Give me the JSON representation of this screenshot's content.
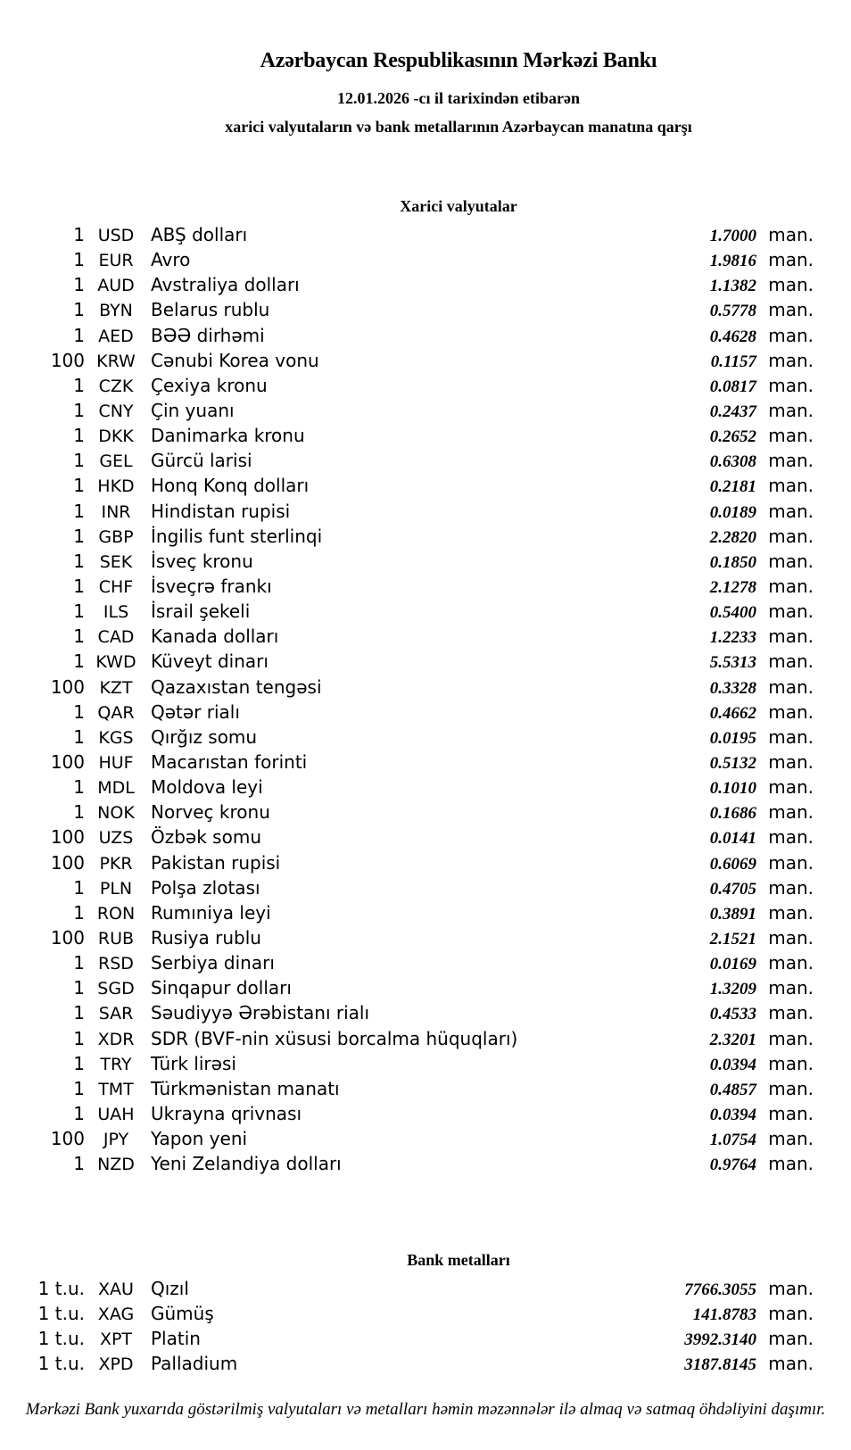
{
  "colors": {
    "background": "#ffffff",
    "text": "#000000"
  },
  "header": {
    "title": "Azərbaycan Respublikasının Mərkəzi Bankı",
    "date_line": "12.01.2026 -cı il tarixindən etibarən",
    "subtitle": "xarici valyutaların və bank metallarının Azərbaycan manatına qarşı"
  },
  "currencies": {
    "heading": "Xarici valyutalar",
    "unit": "man.",
    "rows": [
      {
        "qty": "1",
        "code": "USD",
        "name": "ABŞ dolları",
        "rate": "1.7000"
      },
      {
        "qty": "1",
        "code": "EUR",
        "name": "Avro",
        "rate": "1.9816"
      },
      {
        "qty": "1",
        "code": "AUD",
        "name": "Avstraliya dolları",
        "rate": "1.1382"
      },
      {
        "qty": "1",
        "code": "BYN",
        "name": "Belarus rublu",
        "rate": "0.5778"
      },
      {
        "qty": "1",
        "code": "AED",
        "name": "BƏƏ dirhəmi",
        "rate": "0.4628"
      },
      {
        "qty": "100",
        "code": "KRW",
        "name": "Cənubi Korea vonu",
        "rate": "0.1157"
      },
      {
        "qty": "1",
        "code": "CZK",
        "name": "Çexiya kronu",
        "rate": "0.0817"
      },
      {
        "qty": "1",
        "code": "CNY",
        "name": "Çin yuanı",
        "rate": "0.2437"
      },
      {
        "qty": "1",
        "code": "DKK",
        "name": "Danimarka kronu",
        "rate": "0.2652"
      },
      {
        "qty": "1",
        "code": "GEL",
        "name": "Gürcü larisi",
        "rate": "0.6308"
      },
      {
        "qty": "1",
        "code": "HKD",
        "name": "Honq Konq dolları",
        "rate": "0.2181"
      },
      {
        "qty": "1",
        "code": "INR",
        "name": "Hindistan rupisi",
        "rate": "0.0189"
      },
      {
        "qty": "1",
        "code": "GBP",
        "name": "İngilis funt sterlinqi",
        "rate": "2.2820"
      },
      {
        "qty": "1",
        "code": "SEK",
        "name": "İsveç kronu",
        "rate": "0.1850"
      },
      {
        "qty": "1",
        "code": "CHF",
        "name": "İsveçrə frankı",
        "rate": "2.1278"
      },
      {
        "qty": "1",
        "code": "ILS",
        "name": "İsrail şekeli",
        "rate": "0.5400"
      },
      {
        "qty": "1",
        "code": "CAD",
        "name": "Kanada dolları",
        "rate": "1.2233"
      },
      {
        "qty": "1",
        "code": "KWD",
        "name": "Küveyt dinarı",
        "rate": "5.5313"
      },
      {
        "qty": "100",
        "code": "KZT",
        "name": "Qazaxıstan tengəsi",
        "rate": "0.3328"
      },
      {
        "qty": "1",
        "code": "QAR",
        "name": "Qətər rialı",
        "rate": "0.4662"
      },
      {
        "qty": "1",
        "code": "KGS",
        "name": "Qırğız somu",
        "rate": "0.0195"
      },
      {
        "qty": "100",
        "code": "HUF",
        "name": "Macarıstan forinti",
        "rate": "0.5132"
      },
      {
        "qty": "1",
        "code": "MDL",
        "name": "Moldova leyi",
        "rate": "0.1010"
      },
      {
        "qty": "1",
        "code": "NOK",
        "name": "Norveç kronu",
        "rate": "0.1686"
      },
      {
        "qty": "100",
        "code": "UZS",
        "name": "Özbək somu",
        "rate": "0.0141"
      },
      {
        "qty": "100",
        "code": "PKR",
        "name": "Pakistan rupisi",
        "rate": "0.6069"
      },
      {
        "qty": "1",
        "code": "PLN",
        "name": "Polşa zlotası",
        "rate": "0.4705"
      },
      {
        "qty": "1",
        "code": "RON",
        "name": "Rumıniya leyi",
        "rate": "0.3891"
      },
      {
        "qty": "100",
        "code": "RUB",
        "name": "Rusiya rublu",
        "rate": "2.1521"
      },
      {
        "qty": "1",
        "code": "RSD",
        "name": "Serbiya dinarı",
        "rate": "0.0169"
      },
      {
        "qty": "1",
        "code": "SGD",
        "name": "Sinqapur dolları",
        "rate": "1.3209"
      },
      {
        "qty": "1",
        "code": "SAR",
        "name": "Səudiyyə Ərəbistanı rialı",
        "rate": "0.4533"
      },
      {
        "qty": "1",
        "code": "XDR",
        "name": "SDR (BVF-nin xüsusi borcalma hüquqları)",
        "rate": "2.3201"
      },
      {
        "qty": "1",
        "code": "TRY",
        "name": "Türk lirəsi",
        "rate": "0.0394"
      },
      {
        "qty": "1",
        "code": "TMT",
        "name": "Türkmənistan manatı",
        "rate": "0.4857"
      },
      {
        "qty": "1",
        "code": "UAH",
        "name": "Ukrayna qrivnası",
        "rate": "0.0394"
      },
      {
        "qty": "100",
        "code": "JPY",
        "name": "Yapon yeni",
        "rate": "1.0754"
      },
      {
        "qty": "1",
        "code": "NZD",
        "name": "Yeni Zelandiya dolları",
        "rate": "0.9764"
      }
    ]
  },
  "metals": {
    "heading": "Bank metalları",
    "unit": "man.",
    "rows": [
      {
        "qty": "1 t.u.",
        "code": "XAU",
        "name": "Qızıl",
        "rate": "7766.3055"
      },
      {
        "qty": "1 t.u.",
        "code": "XAG",
        "name": "Gümüş",
        "rate": "141.8783"
      },
      {
        "qty": "1 t.u.",
        "code": "XPT",
        "name": "Platin",
        "rate": "3992.3140"
      },
      {
        "qty": "1 t.u.",
        "code": "XPD",
        "name": "Palladium",
        "rate": "3187.8145"
      }
    ]
  },
  "footer": {
    "note": "Mərkəzi Bank yuxarıda göstərilmiş valyutaları və metalları həmin məzənnələr ilə almaq və satmaq öhdəliyini daşımır."
  }
}
